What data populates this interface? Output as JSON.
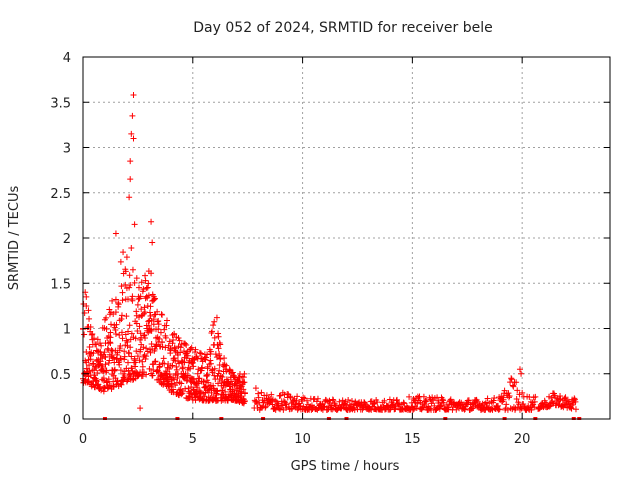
{
  "chart_data": {
    "type": "scatter",
    "title": "Day 052 of 2024, SRMTID for receiver bele",
    "xlabel": "GPS time / hours",
    "ylabel": "SRMTID / TECUs",
    "xlim": [
      0,
      24
    ],
    "ylim": [
      0,
      4
    ],
    "x_ticks": [
      0,
      5,
      10,
      15,
      20
    ],
    "x_tick_labels": [
      "0",
      "5",
      "10",
      "15",
      "20"
    ],
    "y_ticks": [
      0,
      0.5,
      1,
      1.5,
      2,
      2.5,
      3,
      3.5,
      4
    ],
    "y_tick_labels": [
      "0",
      "0.5",
      "1",
      "1.5",
      "2",
      "2.5",
      "3",
      "3.5",
      "4"
    ],
    "grid": true,
    "marker": "plus",
    "colors": {
      "series": "#ff0000",
      "grid": "#a0a0a0",
      "frame": "#000000",
      "text": "#222222"
    },
    "series": [
      {
        "name": "SRMTID",
        "envelope_hours": [
          0,
          0.5,
          1,
          1.5,
          2,
          2.5,
          3,
          3.5,
          4,
          4.5,
          5,
          5.5,
          6,
          6.5,
          7,
          7.5,
          8,
          9,
          10,
          11,
          12,
          13,
          14,
          15,
          16,
          17,
          18,
          19,
          19.5,
          20,
          20.5,
          21,
          21.5,
          22,
          22.5
        ],
        "envelope_min": [
          0.4,
          0.35,
          0.3,
          0.35,
          0.4,
          0.45,
          0.5,
          0.4,
          0.3,
          0.25,
          0.2,
          0.2,
          0.2,
          0.2,
          0.2,
          0.15,
          0.1,
          0.1,
          0.1,
          0.1,
          0.1,
          0.1,
          0.1,
          0.1,
          0.1,
          0.1,
          0.1,
          0.1,
          0.1,
          0.1,
          0.1,
          0.12,
          0.15,
          0.12,
          0.1
        ],
        "envelope_max": [
          1.4,
          0.9,
          1.1,
          1.5,
          2.1,
          1.6,
          1.7,
          1.3,
          1.0,
          0.9,
          0.8,
          0.7,
          1.1,
          0.6,
          0.5,
          0.5,
          0.3,
          0.3,
          0.25,
          0.22,
          0.22,
          0.22,
          0.22,
          0.25,
          0.25,
          0.22,
          0.22,
          0.25,
          0.5,
          0.3,
          0.25,
          0.22,
          0.3,
          0.25,
          0.22
        ],
        "peaks": [
          [
            0.1,
            1.4
          ],
          [
            0.15,
            1.35
          ],
          [
            0.25,
            1.2
          ],
          [
            1.5,
            2.05
          ],
          [
            2.1,
            2.45
          ],
          [
            2.15,
            2.65
          ],
          [
            2.15,
            2.85
          ],
          [
            2.2,
            3.15
          ],
          [
            2.25,
            3.35
          ],
          [
            2.3,
            3.1
          ],
          [
            2.3,
            3.58
          ],
          [
            2.35,
            2.15
          ],
          [
            2.6,
            0.12
          ],
          [
            3.1,
            2.18
          ],
          [
            3.15,
            1.95
          ],
          [
            6.1,
            1.12
          ],
          [
            19.9,
            0.55
          ],
          [
            19.95,
            0.5
          ]
        ],
        "gaps_hours": [
          [
            7.4,
            7.8
          ],
          [
            20.6,
            20.7
          ],
          [
            22.45,
            24
          ]
        ],
        "edge_marks_hours": [
          1.0,
          4.3,
          6.3,
          8.2,
          11.2,
          12.0,
          16.5,
          19.2,
          20.6,
          22.35,
          22.6
        ]
      }
    ]
  }
}
